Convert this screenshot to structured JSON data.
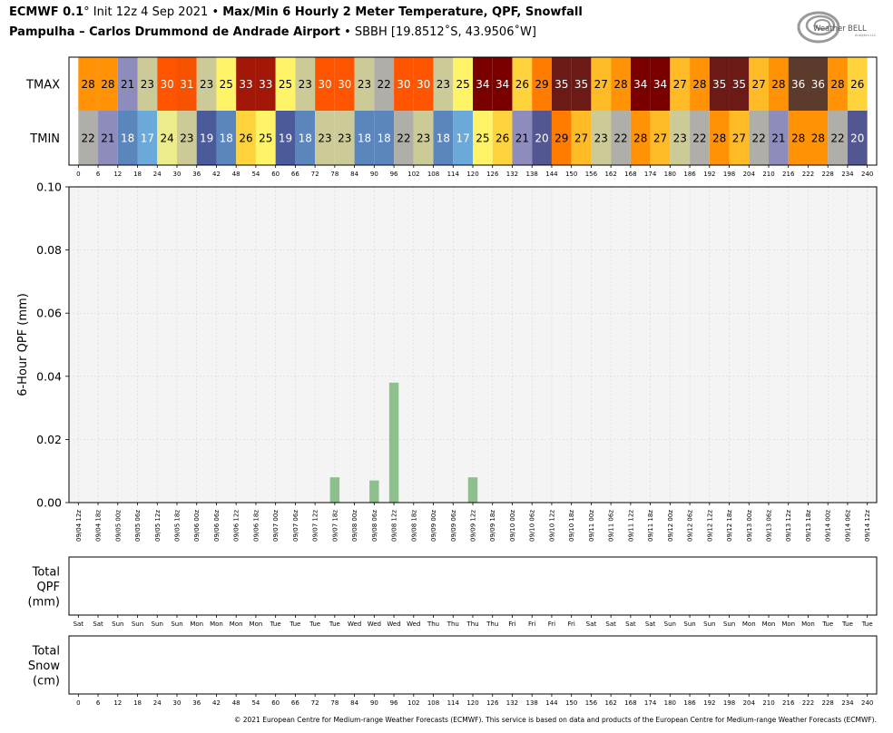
{
  "header": {
    "title_model": "ECMWF 0.1",
    "title_degree": "°",
    "title_init": " Init 12z 4 Sep 2021 • ",
    "title_fields": "Max/Min 6 Hourly 2 Meter Temperature,  QPF,  Snowfall",
    "station_name": "Pampulha – Carlos Drummond de Andrade Airport",
    "station_code": " • SBBH [19.8512˚S, 43.9506˚W]"
  },
  "logo": {
    "text_weather": "Weather",
    "text_bell": "BELL",
    "text_sub": "Analytics LLC",
    "icon": "swirl-logo-icon"
  },
  "copyright": "© 2021 European Centre for Medium-range Weather Forecasts (ECMWF). This service is based on data and products of the European Centre for Medium-range Weather Forecasts (ECMWF).",
  "chart_data": [
    {
      "type": "heatmap",
      "rows": [
        "TMAX",
        "TMIN"
      ],
      "x": [
        3,
        9,
        15,
        21,
        27,
        33,
        39,
        45,
        51,
        57,
        63,
        69,
        75,
        81,
        87,
        93,
        99,
        105,
        111,
        117,
        123,
        129,
        135,
        141,
        147,
        153,
        159,
        165,
        171,
        177,
        183,
        189,
        195,
        201,
        207,
        213,
        219,
        225,
        231,
        237
      ],
      "tmax": [
        28,
        28,
        21,
        23,
        30,
        31,
        23,
        25,
        33,
        33,
        25,
        23,
        30,
        30,
        23,
        22,
        30,
        30,
        23,
        25,
        34,
        34,
        26,
        29,
        35,
        35,
        27,
        28,
        34,
        34,
        27,
        28,
        35,
        35,
        27,
        28,
        36,
        36,
        28,
        26
      ],
      "tmin": [
        22,
        21,
        18,
        17,
        24,
        23,
        19,
        18,
        26,
        25,
        19,
        18,
        23,
        23,
        18,
        18,
        22,
        23,
        18,
        17,
        25,
        26,
        21,
        20,
        29,
        27,
        23,
        22,
        28,
        27,
        23,
        22,
        28,
        27,
        22,
        21,
        28,
        28,
        22,
        20
      ],
      "xticks": [
        0,
        6,
        12,
        18,
        24,
        30,
        36,
        42,
        48,
        54,
        60,
        66,
        72,
        78,
        84,
        90,
        96,
        102,
        108,
        114,
        120,
        126,
        132,
        138,
        144,
        150,
        156,
        162,
        168,
        174,
        180,
        186,
        192,
        198,
        204,
        210,
        216,
        222,
        228,
        234,
        240
      ]
    },
    {
      "type": "bar",
      "ylabel": "6-Hour QPF (mm)",
      "ylim": [
        0,
        0.1
      ],
      "yticks": [
        "0.00",
        "0.02",
        "0.04",
        "0.06",
        "0.08",
        "0.10"
      ],
      "bars": [
        {
          "x": 78,
          "value": 0.008
        },
        {
          "x": 90,
          "value": 0.007
        },
        {
          "x": 96,
          "value": 0.038
        },
        {
          "x": 120,
          "value": 0.008
        }
      ],
      "xticks": [
        "09/04 12z",
        "09/04 18z",
        "09/05 00z",
        "09/05 06z",
        "09/05 12z",
        "09/05 18z",
        "09/06 00z",
        "09/06 06z",
        "09/06 12z",
        "09/06 18z",
        "09/07 00z",
        "09/07 06z",
        "09/07 12z",
        "09/07 18z",
        "09/08 00z",
        "09/08 06z",
        "09/08 12z",
        "09/08 18z",
        "09/09 00z",
        "09/09 06z",
        "09/09 12z",
        "09/09 18z",
        "09/10 00z",
        "09/10 06z",
        "09/10 12z",
        "09/10 18z",
        "09/11 00z",
        "09/11 06z",
        "09/11 12z",
        "09/11 18z",
        "09/12 00z",
        "09/12 06z",
        "09/12 12z",
        "09/12 18z",
        "09/13 00z",
        "09/13 06z",
        "09/13 12z",
        "09/13 18z",
        "09/14 00z",
        "09/14 06z",
        "09/14 12z"
      ],
      "grid": true
    },
    {
      "type": "bar",
      "ylabel": "Total\nQPF\n(mm)",
      "xticks": [
        "Sat",
        "Sat",
        "Sun",
        "Sun",
        "Sun",
        "Sun",
        "Mon",
        "Mon",
        "Mon",
        "Mon",
        "Tue",
        "Tue",
        "Tue",
        "Tue",
        "Wed",
        "Wed",
        "Wed",
        "Wed",
        "Thu",
        "Thu",
        "Thu",
        "Thu",
        "Fri",
        "Fri",
        "Fri",
        "Fri",
        "Sat",
        "Sat",
        "Sat",
        "Sat",
        "Sun",
        "Sun",
        "Sun",
        "Sun",
        "Mon",
        "Mon",
        "Mon",
        "Mon",
        "Tue",
        "Tue",
        "Tue"
      ]
    },
    {
      "type": "bar",
      "ylabel": "Total\nSnow\n(cm)",
      "xticks": [
        0,
        6,
        12,
        18,
        24,
        30,
        36,
        42,
        48,
        54,
        60,
        66,
        72,
        78,
        84,
        90,
        96,
        102,
        108,
        114,
        120,
        126,
        132,
        138,
        144,
        150,
        156,
        162,
        168,
        174,
        180,
        186,
        192,
        198,
        204,
        210,
        216,
        222,
        228,
        234,
        240
      ]
    }
  ],
  "colors": {
    "qpf_bar": "#8dc08c",
    "plot_bg": "#f4f4f4",
    "grid": "#d9d9d9"
  }
}
